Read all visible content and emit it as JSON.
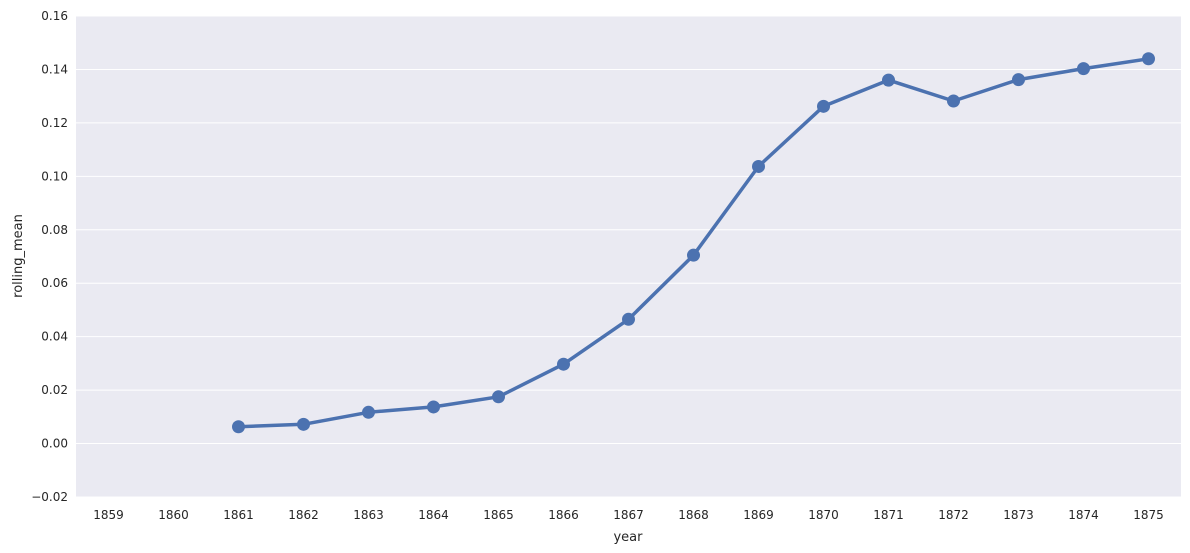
{
  "chart_data": {
    "type": "line",
    "title": "",
    "xlabel": "year",
    "ylabel": "rolling_mean",
    "categories": [
      "1859",
      "1860",
      "1861",
      "1862",
      "1863",
      "1864",
      "1865",
      "1866",
      "1867",
      "1868",
      "1869",
      "1870",
      "1871",
      "1872",
      "1873",
      "1874",
      "1875"
    ],
    "series": [
      {
        "values": [
          null,
          null,
          0.0063,
          0.0072,
          0.0117,
          0.0137,
          0.0175,
          0.0297,
          0.0465,
          0.0705,
          0.1037,
          0.1262,
          0.136,
          0.1282,
          0.1362,
          0.1403,
          0.144
        ],
        "color": "#4c72b0"
      }
    ],
    "yticks": [
      "−0.02",
      "0.00",
      "0.02",
      "0.04",
      "0.06",
      "0.08",
      "0.10",
      "0.12",
      "0.14",
      "0.16"
    ],
    "ytick_values": [
      -0.02,
      0.0,
      0.02,
      0.04,
      0.06,
      0.08,
      0.1,
      0.12,
      0.14,
      0.16
    ],
    "ylim": [
      -0.02,
      0.16
    ],
    "grid": true,
    "legend": "none",
    "background_color": "#eaeaf2"
  }
}
